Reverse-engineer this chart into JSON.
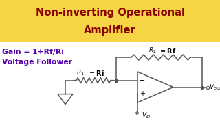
{
  "title_line1": "Non-inverting Operational",
  "title_line2": "Amplifier",
  "title_color": "#8b0000",
  "title_bg": "#f5d445",
  "gain_text": "Gain = 1+Rf/Ri",
  "follower_text": "Voltage Follower",
  "label_color": "#5500aa",
  "bg_color": "#ffffff",
  "lc": "#555555",
  "lw": 1.1
}
